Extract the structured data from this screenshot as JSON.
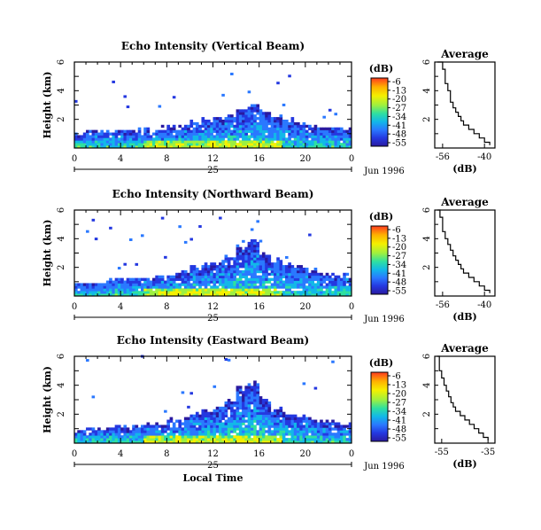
{
  "chart_data": [
    {
      "type": "heatmap",
      "title": "Echo Intensity (Vertical Beam)",
      "ylabel": "Height (km)",
      "xlabel": "",
      "x_ticks": [
        "0",
        "4",
        "8",
        "12",
        "16",
        "20",
        "0"
      ],
      "y_ticks": [
        "2",
        "4",
        "6"
      ],
      "xlim": [
        0,
        24
      ],
      "ylim": [
        0,
        6
      ],
      "day_label": "25",
      "date_label": "Jun 1996",
      "colorbar": {
        "unit": "(dB)",
        "ticks": [
          "-6",
          "-13",
          "-20",
          "-27",
          "-34",
          "-41",
          "-48",
          "-55"
        ],
        "colors": [
          "#ff3a1e",
          "#ffb000",
          "#f5f000",
          "#9df040",
          "#2fe0a0",
          "#12b8e8",
          "#2a78ff",
          "#2438e0",
          "#2a1aa0"
        ]
      },
      "echo_top_km": [
        1.1,
        1.2,
        1.1,
        1.2,
        1.3,
        1.2,
        1.3,
        1.4,
        1.5,
        1.6,
        1.8,
        2.0,
        2.1,
        2.4,
        2.7,
        3.0,
        2.6,
        2.2,
        1.9,
        1.8,
        1.6,
        1.5,
        1.4,
        1.3
      ]
    },
    {
      "type": "heatmap",
      "title": "Echo Intensity (Northward Beam)",
      "ylabel": "Height (km)",
      "xlabel": "",
      "x_ticks": [
        "0",
        "4",
        "8",
        "12",
        "16",
        "20",
        "0"
      ],
      "y_ticks": [
        "2",
        "4",
        "6"
      ],
      "xlim": [
        0,
        24
      ],
      "ylim": [
        0,
        6
      ],
      "day_label": "25",
      "date_label": "Jun 1996",
      "colorbar": {
        "unit": "(dB)",
        "ticks": [
          "-6",
          "-13",
          "-20",
          "-27",
          "-34",
          "-41",
          "-48",
          "-55"
        ],
        "colors": [
          "#ff3a1e",
          "#ffb000",
          "#f5f000",
          "#9df040",
          "#2fe0a0",
          "#12b8e8",
          "#2a78ff",
          "#2438e0",
          "#2a1aa0"
        ]
      },
      "echo_top_km": [
        0.9,
        1.0,
        1.0,
        1.1,
        1.2,
        1.3,
        1.3,
        1.4,
        1.6,
        1.8,
        2.0,
        2.2,
        2.4,
        2.8,
        3.4,
        4.0,
        3.0,
        2.5,
        2.2,
        2.0,
        1.8,
        1.6,
        1.5,
        1.4
      ]
    },
    {
      "type": "heatmap",
      "title": "Echo Intensity (Eastward Beam)",
      "ylabel": "Height (km)",
      "xlabel": "Local Time",
      "x_ticks": [
        "0",
        "4",
        "8",
        "12",
        "16",
        "20",
        "0"
      ],
      "y_ticks": [
        "2",
        "4",
        "6"
      ],
      "xlim": [
        0,
        24
      ],
      "ylim": [
        0,
        6
      ],
      "day_label": "25",
      "date_label": "Jun 1996",
      "colorbar": {
        "unit": "(dB)",
        "ticks": [
          "-6",
          "-13",
          "-20",
          "-27",
          "-34",
          "-41",
          "-48",
          "-55"
        ],
        "colors": [
          "#ff3a1e",
          "#ffb000",
          "#f5f000",
          "#9df040",
          "#2fe0a0",
          "#12b8e8",
          "#2a78ff",
          "#2438e0",
          "#2a1aa0"
        ]
      },
      "echo_top_km": [
        0.9,
        1.0,
        1.0,
        1.1,
        1.1,
        1.2,
        1.3,
        1.4,
        1.6,
        1.8,
        2.0,
        2.2,
        2.5,
        2.9,
        3.8,
        4.2,
        3.0,
        2.4,
        2.1,
        1.9,
        1.7,
        1.6,
        1.5,
        1.4
      ]
    },
    {
      "type": "line",
      "title": "Average",
      "xlabel": "(dB)",
      "x_ticks": [
        "-56",
        "-40"
      ],
      "y_ticks": [
        "2",
        "4",
        "6"
      ],
      "xlim": [
        -59,
        -36
      ],
      "ylim": [
        0,
        6
      ],
      "x": [
        -58,
        -56,
        -55,
        -55,
        -54,
        -53,
        -53,
        -52,
        -51,
        -50,
        -49,
        -48,
        -46,
        -44,
        -42,
        -40,
        -38
      ],
      "y": [
        6.0,
        5.5,
        5.0,
        4.5,
        4.0,
        3.6,
        3.2,
        2.8,
        2.5,
        2.2,
        1.9,
        1.6,
        1.3,
        1.0,
        0.7,
        0.4,
        0.2
      ]
    },
    {
      "type": "line",
      "title": "Average",
      "xlabel": "(dB)",
      "x_ticks": [
        "-56",
        "-40"
      ],
      "y_ticks": [
        "2",
        "4",
        "6"
      ],
      "xlim": [
        -59,
        -36
      ],
      "ylim": [
        0,
        6
      ],
      "x": [
        -58,
        -57,
        -56,
        -56,
        -55,
        -54,
        -53,
        -52,
        -51,
        -50,
        -49,
        -48,
        -46,
        -44,
        -42,
        -40,
        -38
      ],
      "y": [
        6.0,
        5.5,
        5.0,
        4.5,
        4.0,
        3.6,
        3.2,
        2.8,
        2.5,
        2.2,
        1.9,
        1.6,
        1.3,
        1.0,
        0.7,
        0.4,
        0.2
      ]
    },
    {
      "type": "line",
      "title": "Average",
      "xlabel": "(dB)",
      "x_ticks": [
        "-55",
        "-35"
      ],
      "y_ticks": [
        "2",
        "4",
        "6"
      ],
      "xlim": [
        -58,
        -32
      ],
      "ylim": [
        0,
        6
      ],
      "x": [
        -57,
        -56,
        -56,
        -55,
        -54,
        -53,
        -52,
        -51,
        -50,
        -49,
        -47,
        -45,
        -43,
        -41,
        -39,
        -37,
        -35
      ],
      "y": [
        6.0,
        5.5,
        5.0,
        4.5,
        4.0,
        3.6,
        3.2,
        2.8,
        2.5,
        2.2,
        1.9,
        1.6,
        1.3,
        1.0,
        0.7,
        0.4,
        0.2
      ]
    }
  ]
}
